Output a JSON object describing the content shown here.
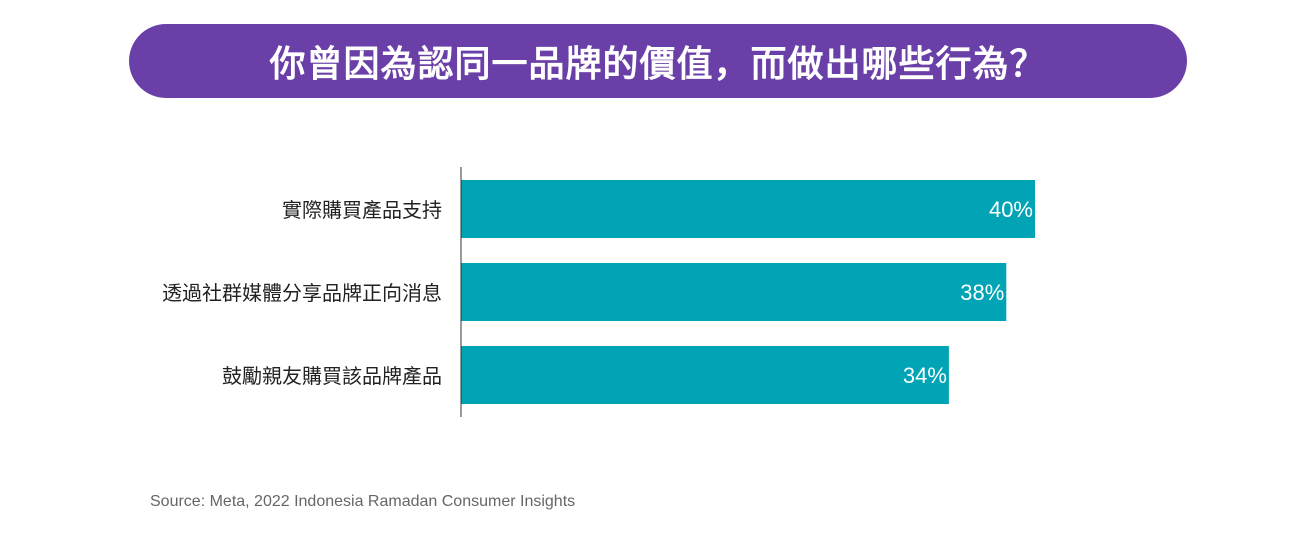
{
  "title": "你曾因為認同一品牌的價值，而做出哪些行為？",
  "source": "Source: Meta, 2022 Indonesia Ramadan Consumer Insights",
  "colors": {
    "title_background": "#6a3fa8",
    "bar": "#00a4b4",
    "axis": "#333333",
    "label_text": "#222222",
    "value_text": "#ffffff"
  },
  "chart_data": {
    "type": "bar",
    "orientation": "horizontal",
    "categories": [
      "實際購買產品支持",
      "透過社群媒體分享品牌正向消息",
      "鼓勵親友購買該品牌產品"
    ],
    "values": [
      40,
      38,
      34
    ],
    "value_labels": [
      "40%",
      "38%",
      "34%"
    ],
    "unit": "%",
    "xlim": [
      0,
      100
    ],
    "grid": false,
    "legend": "none"
  }
}
